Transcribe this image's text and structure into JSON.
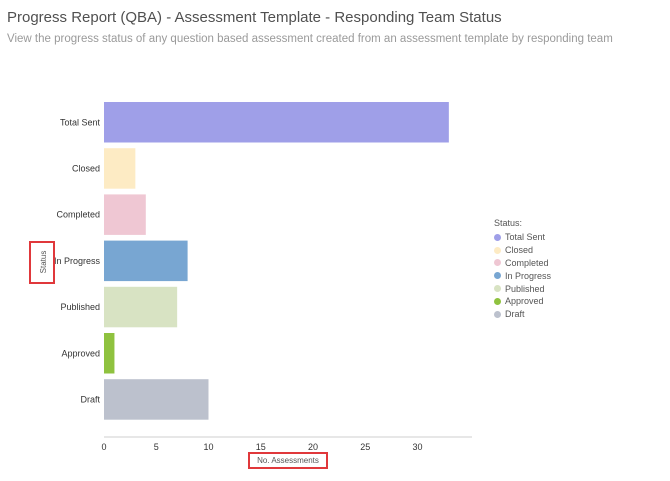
{
  "page": {
    "title": "Progress Report (QBA) - Assessment Template - Responding Team Status",
    "subtitle": "View the progress status of any question based assessment created from an assessment template by responding team"
  },
  "chart_data": {
    "type": "bar",
    "orientation": "horizontal",
    "categories": [
      "Total Sent",
      "Closed",
      "Completed",
      "In Progress",
      "Published",
      "Approved",
      "Draft"
    ],
    "values": [
      33,
      3,
      4,
      8,
      7,
      1,
      10
    ],
    "colors": [
      "#9f9fe8",
      "#fdebc4",
      "#efc7d3",
      "#78a6d2",
      "#d8e3c3",
      "#8fc23f",
      "#bcc1cd"
    ],
    "xlabel": "No. Assessments",
    "ylabel": "Status",
    "xlim": [
      0,
      35
    ],
    "xticks": [
      0,
      5,
      10,
      15,
      20,
      25,
      30
    ],
    "grid": false,
    "legend": {
      "title": "Status:",
      "placement": "right"
    },
    "annotations": {
      "highlight_color": "#e0383b",
      "highlighted": [
        "ylabel",
        "xlabel"
      ]
    }
  }
}
